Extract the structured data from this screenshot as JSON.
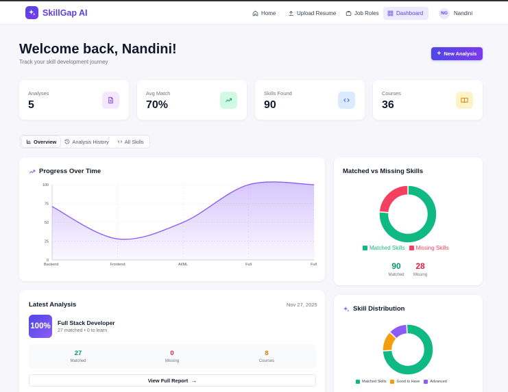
{
  "nav": {
    "brand": "SkillGap AI",
    "items": [
      {
        "label": "Home",
        "icon": "home-icon"
      },
      {
        "label": "Upload Resume",
        "icon": "upload-icon"
      },
      {
        "label": "Job Roles",
        "icon": "briefcase-icon"
      },
      {
        "label": "Dashboard",
        "icon": "grid-icon",
        "active": true
      }
    ],
    "user": {
      "initials": "NG",
      "name": "Nandini"
    }
  },
  "header": {
    "title": "Welcome back, Nandini!",
    "subtitle": "Track your skill development journey",
    "new_button": "New Analysis"
  },
  "stats": [
    {
      "label": "Analyses",
      "value": "5",
      "icon": "document-icon",
      "color": "#7c3aed",
      "bg": "#f3e8ff"
    },
    {
      "label": "Avg Match",
      "value": "70%",
      "icon": "trending-up-icon",
      "color": "#059669",
      "bg": "#d1fae5"
    },
    {
      "label": "Skills Found",
      "value": "90",
      "icon": "code-icon",
      "color": "#2563eb",
      "bg": "#dbeafe"
    },
    {
      "label": "Courses",
      "value": "36",
      "icon": "book-icon",
      "color": "#d97706",
      "bg": "#fef3c7"
    }
  ],
  "tabs": [
    {
      "label": "Overview",
      "icon": "bar-chart-icon",
      "active": true
    },
    {
      "label": "Analysis History",
      "icon": "history-icon"
    },
    {
      "label": "All Skills",
      "icon": "code-icon"
    }
  ],
  "progress": {
    "title": "Progress Over Time",
    "chart_data": {
      "type": "area",
      "categories": [
        "Backend",
        "Frontend",
        "AI/ML",
        "Full",
        "Full"
      ],
      "values": [
        71,
        28,
        50,
        100,
        100
      ],
      "ylim": [
        0,
        100
      ],
      "yticks": [
        0,
        25,
        50,
        75,
        100
      ],
      "color": "#8b5cf6"
    }
  },
  "matched": {
    "title": "Matched vs Missing Skills",
    "chart_data": {
      "type": "pie",
      "labels": [
        "Matched Skills",
        "Missing Skills"
      ],
      "values": [
        90,
        28
      ],
      "colors": [
        "#10b981",
        "#f43f5e"
      ]
    },
    "matched_value": "90",
    "matched_label": "Matched",
    "missing_value": "28",
    "missing_label": "Missing"
  },
  "latest": {
    "title": "Latest Analysis",
    "date": "Nov 27, 2025",
    "score": "100%",
    "role": "Full Stack Developer",
    "sub": "27 matched • 0 to learn",
    "summary": [
      {
        "value": "27",
        "label": "Matched",
        "color": "#059669"
      },
      {
        "value": "0",
        "label": "Missing",
        "color": "#e11d48"
      },
      {
        "value": "8",
        "label": "Courses",
        "color": "#d97706"
      }
    ],
    "report_button": "View Full Report"
  },
  "distribution": {
    "title": "Skill Distribution",
    "chart_data": {
      "type": "pie",
      "labels": [
        "Matched Skills",
        "Good to Have",
        "Advanced"
      ],
      "values": [
        75,
        13,
        12
      ],
      "colors": [
        "#10b981",
        "#f59e0b",
        "#8b5cf6"
      ]
    }
  }
}
